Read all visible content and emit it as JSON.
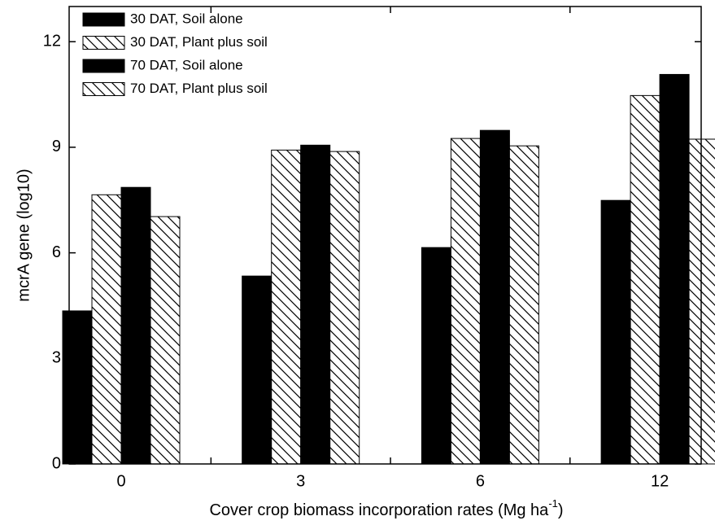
{
  "chart_data": {
    "type": "bar",
    "x_label": "Cover crop biomass incorporation rates (Mg ha",
    "x_label_sup": "-1",
    "x_label_end": ")",
    "y_label": "mcrA gene (log10)",
    "categories": [
      "0",
      "3",
      "6",
      "12"
    ],
    "series": [
      {
        "name": "30 DAT, Soil alone",
        "color": "#000000",
        "pattern": "solid",
        "values": [
          4.35,
          5.34,
          6.15,
          7.49
        ]
      },
      {
        "name": "30 DAT, Plant plus soil",
        "color": "#000000",
        "pattern": "hatch",
        "values": [
          7.65,
          8.92,
          9.25,
          10.47
        ]
      },
      {
        "name": "70 DAT, Soil alone",
        "color": "#000000",
        "pattern": "solid",
        "values": [
          7.86,
          9.06,
          9.48,
          11.07
        ]
      },
      {
        "name": "70 DAT, Plant plus soil",
        "color": "#000000",
        "pattern": "hatch",
        "values": [
          7.03,
          8.88,
          9.04,
          9.23
        ]
      }
    ],
    "ylim": [
      0,
      13
    ],
    "yticks": [
      0,
      3,
      6,
      9,
      12
    ],
    "grid": false,
    "legend": "top-left"
  }
}
